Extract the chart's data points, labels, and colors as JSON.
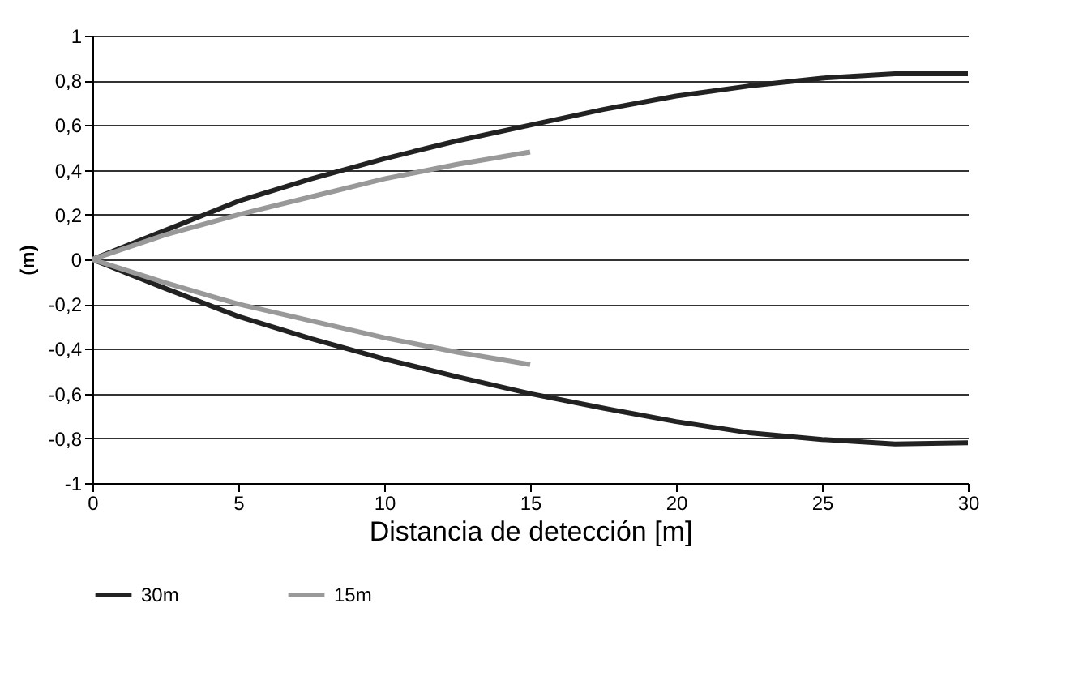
{
  "chart_data": {
    "type": "line",
    "xlabel": "Distancia de detección [m]",
    "ylabel": "(m)",
    "xlim": [
      0,
      30
    ],
    "xticks": [
      0,
      5,
      10,
      15,
      20,
      25,
      30
    ],
    "ylim": [
      -1,
      1
    ],
    "yticks": [
      {
        "value": -1,
        "label": "-1"
      },
      {
        "value": -0.8,
        "label": "-0,8"
      },
      {
        "value": -0.6,
        "label": "-0,6"
      },
      {
        "value": -0.4,
        "label": "-0,4"
      },
      {
        "value": -0.2,
        "label": "-0,2"
      },
      {
        "value": 0,
        "label": "0"
      },
      {
        "value": 0.2,
        "label": "0,2"
      },
      {
        "value": 0.4,
        "label": "0,4"
      },
      {
        "value": 0.6,
        "label": "0,6"
      },
      {
        "value": 0.8,
        "label": "0,8"
      },
      {
        "value": 1,
        "label": "1"
      }
    ],
    "grid": "y",
    "legend": "bottom",
    "marker": "none",
    "line_style": "solid",
    "series": [
      {
        "name": "30m",
        "color": "#222222",
        "x": [
          0,
          2.5,
          5,
          7.5,
          10,
          12.5,
          15,
          17.5,
          20,
          22.5,
          25,
          27.5,
          30
        ],
        "values": [
          0,
          0.13,
          0.26,
          0.36,
          0.45,
          0.53,
          0.6,
          0.67,
          0.73,
          0.775,
          0.81,
          0.83,
          0.83
        ]
      },
      {
        "color": "#222222",
        "x": [
          0,
          2.5,
          5,
          7.5,
          10,
          12.5,
          15,
          17.5,
          20,
          22.5,
          25,
          27.5,
          30
        ],
        "values": [
          0,
          -0.13,
          -0.255,
          -0.355,
          -0.445,
          -0.525,
          -0.6,
          -0.665,
          -0.725,
          -0.775,
          -0.805,
          -0.825,
          -0.82
        ]
      },
      {
        "name": "15m",
        "color": "#999999",
        "x": [
          0,
          2.5,
          5,
          7.5,
          10,
          12.5,
          15
        ],
        "values": [
          0,
          0.11,
          0.2,
          0.28,
          0.36,
          0.425,
          0.48
        ]
      },
      {
        "color": "#999999",
        "x": [
          0,
          2.5,
          5,
          7.5,
          10,
          12.5,
          15
        ],
        "values": [
          0,
          -0.105,
          -0.2,
          -0.275,
          -0.35,
          -0.415,
          -0.47
        ]
      }
    ]
  }
}
